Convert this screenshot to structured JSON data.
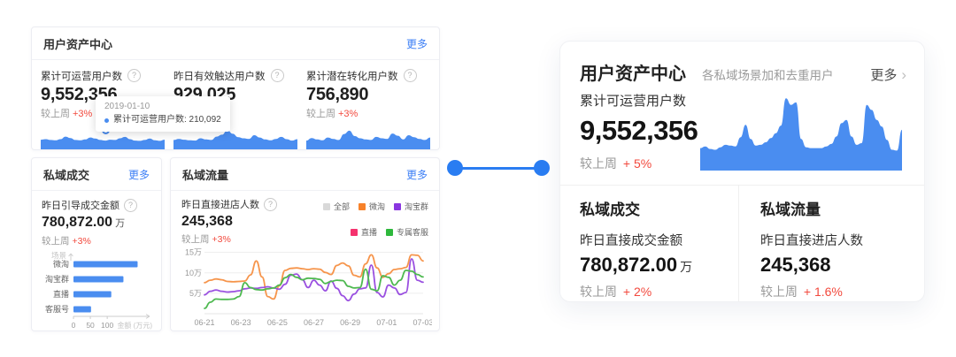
{
  "glyphs": {
    "help": "?",
    "chevron": "›"
  },
  "colors": {
    "primary_blue": "#4a8df0",
    "link_blue": "#3d7ff5",
    "delta_red": "#f2493d",
    "connector_blue": "#2a7df2"
  },
  "left_panel": {
    "user_asset_card": {
      "title": "用户资产中心",
      "more_label": "更多",
      "metrics": [
        {
          "label": "累计可运营用户数",
          "value": "9,552,356",
          "compare_label": "较上周",
          "delta": "+3%"
        },
        {
          "label": "昨日有效触达用户数",
          "value": "929,025",
          "compare_label": "较上周",
          "delta": "+3%"
        },
        {
          "label": "累计潜在转化用户数",
          "value": "756,890",
          "compare_label": "较上周",
          "delta": "+3%"
        }
      ],
      "tooltip": {
        "date": "2019-01-10",
        "text": "累计可运营用户数: 210,092"
      }
    },
    "deal_card": {
      "title": "私域成交",
      "more_label": "更多",
      "metric_label": "昨日引导成交金额",
      "value": "780,872.00",
      "unit": "万",
      "compare_label": "较上周",
      "delta": "+3%"
    },
    "traffic_card": {
      "title": "私域流量",
      "more_label": "更多",
      "metric_label": "昨日直接进店人数",
      "value": "245,368",
      "compare_label": "较上周",
      "delta": "+3%",
      "legend": [
        {
          "label": "全部",
          "color": "#d9d9d9"
        },
        {
          "label": "微淘",
          "color": "#f7822a"
        },
        {
          "label": "淘宝群",
          "color": "#8a36e0"
        },
        {
          "label": "直播",
          "color": "#f5326e"
        },
        {
          "label": "专属客服",
          "color": "#2eb83c"
        }
      ]
    }
  },
  "right_panel": {
    "title": "用户资产中心",
    "subtitle": "各私域场景加和去重用户",
    "more_label": "更多",
    "metric": {
      "label": "累计可运营用户数",
      "value": "9,552,356",
      "compare_label": "较上周",
      "delta": "+ 5%"
    },
    "sections": [
      {
        "title": "私域成交",
        "metric_label": "昨日直接成交金额",
        "value": "780,872.00",
        "unit": "万",
        "compare_label": "较上周",
        "delta": "+ 2%"
      },
      {
        "title": "私域流量",
        "metric_label": "昨日直接进店人数",
        "value": "245,368",
        "unit": "",
        "compare_label": "较上周",
        "delta": "+ 1.6%"
      }
    ]
  },
  "chart_data": [
    {
      "id": "operable-users-spark",
      "type": "area",
      "color": "#4a8df0",
      "ylim": [
        0,
        100
      ],
      "values": [
        34,
        36,
        33,
        32,
        36,
        45,
        40,
        33,
        32,
        35,
        42,
        38,
        33,
        31,
        34,
        33,
        39,
        44,
        36,
        31,
        30,
        33,
        38,
        32,
        30,
        34
      ]
    },
    {
      "id": "reached-users-spark",
      "type": "area",
      "color": "#4a8df0",
      "ylim": [
        0,
        100
      ],
      "values": [
        33,
        37,
        34,
        32,
        31,
        39,
        35,
        33,
        45,
        52,
        68,
        55,
        43,
        39,
        37,
        50,
        42,
        35,
        32,
        37,
        44,
        36,
        31,
        36
      ]
    },
    {
      "id": "conversion-users-spark",
      "type": "area",
      "color": "#4a8df0",
      "ylim": [
        0,
        100
      ],
      "values": [
        31,
        40,
        35,
        32,
        42,
        37,
        33,
        54,
        66,
        47,
        39,
        35,
        33,
        44,
        39,
        37,
        56,
        48,
        35,
        50,
        43,
        37,
        33,
        42
      ]
    },
    {
      "id": "deal-bar-chart",
      "type": "bar",
      "orientation": "horizontal",
      "categories": [
        "微淘",
        "淘宝群",
        "直播",
        "客服号"
      ],
      "values": [
        190,
        148,
        112,
        52
      ],
      "bar_color": "#4a8df0",
      "xlabel": "金额 (万元)",
      "ylabel": "场景",
      "xticks": [
        0,
        50,
        100
      ],
      "xlim": [
        0,
        215
      ]
    },
    {
      "id": "traffic-line-chart",
      "type": "line",
      "x_ticks": [
        "06-21",
        "06-23",
        "06-25",
        "06-27",
        "06-29",
        "07-01",
        "07-03"
      ],
      "ylim": [
        0,
        16
      ],
      "yticks": [
        {
          "v": 5,
          "label": "5万"
        },
        {
          "v": 10,
          "label": "10万"
        },
        {
          "v": 15,
          "label": "15万"
        }
      ],
      "series": [
        {
          "name": "微淘",
          "color": "#f6954c",
          "values": [
            7.6,
            8.2,
            8.5,
            8.3,
            7.9,
            7.8,
            7.9,
            8.0,
            9.5,
            12.9,
            9.0,
            4.2,
            3.6,
            6.8,
            10.6,
            11.1,
            11.2,
            11.0,
            10.8,
            11.0,
            10.9,
            10.1,
            9.6,
            11.8,
            12.4,
            11.7,
            9.4,
            9.0,
            12.2,
            14.4,
            11.2,
            8.9,
            9.8,
            10.8,
            11.0,
            11.3,
            14.4,
            14.3,
            12.9
          ]
        },
        {
          "name": "淘宝群",
          "color": "#9a50e0",
          "values": [
            4.6,
            5.5,
            5.8,
            5.5,
            5.3,
            5.4,
            5.6,
            6.1,
            6.3,
            6.2,
            6.4,
            6.6,
            6.3,
            6.0,
            7.2,
            9.4,
            9.7,
            8.3,
            6.4,
            8.2,
            7.0,
            5.6,
            8.0,
            6.2,
            4.4,
            3.2,
            4.8,
            6.1,
            6.3,
            11.9,
            5.2,
            4.1,
            7.0,
            6.3,
            4.7,
            5.2,
            13.4,
            8.2,
            7.7
          ]
        },
        {
          "name": "专属客服",
          "color": "#4eb950",
          "values": [
            1.3,
            2.8,
            3.6,
            3.5,
            3.5,
            3.6,
            4.2,
            7.6,
            6.4,
            5.9,
            5.8,
            6.1,
            6.3,
            7.0,
            8.8,
            9.6,
            8.9,
            8.3,
            8.7,
            8.6,
            8.4,
            7.4,
            7.9,
            8.2,
            8.1,
            6.7,
            6.3,
            6.4,
            10.9,
            6.0,
            5.6,
            9.3,
            8.9,
            7.0,
            8.2,
            10.6,
            10.4,
            9.6,
            9.0
          ]
        }
      ]
    },
    {
      "id": "right-asset-spark",
      "type": "area",
      "color": "#4a8df0",
      "ylim": [
        0,
        100
      ],
      "values": [
        27,
        29,
        26,
        25,
        28,
        31,
        30,
        29,
        40,
        55,
        38,
        30,
        31,
        34,
        39,
        45,
        54,
        87,
        79,
        82,
        38,
        28,
        27,
        27,
        27,
        29,
        32,
        41,
        57,
        61,
        41,
        31,
        33,
        79,
        73,
        61,
        53,
        37,
        25,
        24,
        49
      ]
    }
  ]
}
